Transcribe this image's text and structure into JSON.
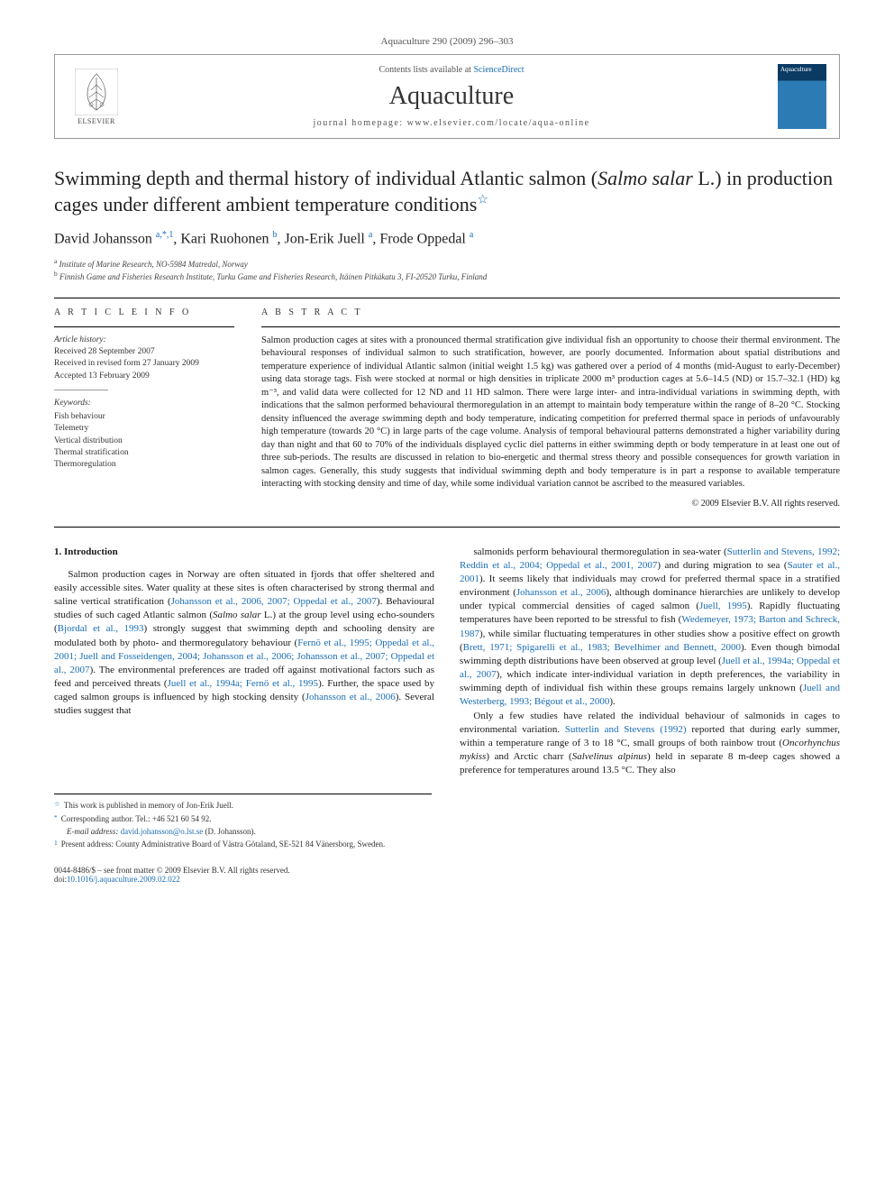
{
  "journal_citation": "Aquaculture 290 (2009) 296–303",
  "header": {
    "contents_prefix": "Contents lists available at ",
    "contents_link": "ScienceDirect",
    "journal_name": "Aquaculture",
    "homepage_label": "journal homepage: ",
    "homepage_url": "www.elsevier.com/locate/aqua-online",
    "publisher": "ELSEVIER",
    "cover_title": "Aquaculture"
  },
  "article": {
    "title_part1": "Swimming depth and thermal history of individual Atlantic salmon (",
    "title_species": "Salmo salar",
    "title_part2": " L.) in production cages under different ambient temperature conditions",
    "star": "☆",
    "authors_html": "David Johansson <sup>a,*,1</sup>, Kari Ruohonen <sup>b</sup>, Jon-Erik Juell <sup>a</sup>, Frode Oppedal <sup>a</sup>",
    "authors": [
      {
        "name": "David Johansson",
        "marks": "a,*,1"
      },
      {
        "name": "Kari Ruohonen",
        "marks": "b"
      },
      {
        "name": "Jon-Erik Juell",
        "marks": "a"
      },
      {
        "name": "Frode Oppedal",
        "marks": "a"
      }
    ],
    "affiliations": [
      {
        "mark": "a",
        "text": "Institute of Marine Research, NO-5984 Matredal, Norway"
      },
      {
        "mark": "b",
        "text": "Finnish Game and Fisheries Research Institute, Turku Game and Fisheries Research, Itäinen Pitkäkatu 3, FI-20520 Turku, Finland"
      }
    ]
  },
  "info": {
    "heading": "A R T I C L E   I N F O",
    "history_label": "Article history:",
    "history": [
      "Received 28 September 2007",
      "Received in revised form 27 January 2009",
      "Accepted 13 February 2009"
    ],
    "keywords_label": "Keywords:",
    "keywords": [
      "Fish behaviour",
      "Telemetry",
      "Vertical distribution",
      "Thermal stratification",
      "Thermoregulation"
    ]
  },
  "abstract": {
    "heading": "A B S T R A C T",
    "text": "Salmon production cages at sites with a pronounced thermal stratification give individual fish an opportunity to choose their thermal environment. The behavioural responses of individual salmon to such stratification, however, are poorly documented. Information about spatial distributions and temperature experience of individual Atlantic salmon (initial weight 1.5 kg) was gathered over a period of 4 months (mid-August to early-December) using data storage tags. Fish were stocked at normal or high densities in triplicate 2000 m³ production cages at 5.6–14.5 (ND) or 15.7–32.1 (HD) kg m⁻³, and valid data were collected for 12 ND and 11 HD salmon. There were large inter- and intra-individual variations in swimming depth, with indications that the salmon performed behavioural thermoregulation in an attempt to maintain body temperature within the range of 8–20 °C. Stocking density influenced the average swimming depth and body temperature, indicating competition for preferred thermal space in periods of unfavourably high temperature (towards 20 °C) in large parts of the cage volume. Analysis of temporal behavioural patterns demonstrated a higher variability during day than night and that 60 to 70% of the individuals displayed cyclic diel patterns in either swimming depth or body temperature in at least one out of three sub-periods. The results are discussed in relation to bio-energetic and thermal stress theory and possible consequences for growth variation in salmon cages. Generally, this study suggests that individual swimming depth and body temperature is in part a response to available temperature interacting with stocking density and time of day, while some individual variation cannot be ascribed to the measured variables.",
    "copyright": "© 2009 Elsevier B.V. All rights reserved."
  },
  "body": {
    "section_heading": "1. Introduction",
    "col1": "Salmon production cages in Norway are often situated in fjords that offer sheltered and easily accessible sites. Water quality at these sites is often characterised by strong thermal and saline vertical stratification (<span class=\"cite\">Johansson et al., 2006, 2007; Oppedal et al., 2007</span>). Behavioural studies of such caged Atlantic salmon (<span class=\"species\">Salmo salar</span> L.) at the group level using echo-sounders (<span class=\"cite\">Bjordal et al., 1993</span>) strongly suggest that swimming depth and schooling density are modulated both by photo- and thermoregulatory behaviour (<span class=\"cite\">Fernö et al., 1995; Oppedal et al., 2001; Juell and Fosseidengen, 2004; Johansson et al., 2006; Johansson et al., 2007; Oppedal et al., 2007</span>). The environmental preferences are traded off against motivational factors such as feed and perceived threats (<span class=\"cite\">Juell et al., 1994a; Fernö et al., 1995</span>). Further, the space used by caged salmon groups is influenced by high stocking density (<span class=\"cite\">Johansson et al., 2006</span>). Several studies suggest that",
    "col2": "salmonids perform behavioural thermoregulation in sea-water (<span class=\"cite\">Sutterlin and Stevens, 1992; Reddin et al., 2004; Oppedal et al., 2001, 2007</span>) and during migration to sea (<span class=\"cite\">Sauter et al., 2001</span>). It seems likely that individuals may crowd for preferred thermal space in a stratified environment (<span class=\"cite\">Johansson et al., 2006</span>), although dominance hierarchies are unlikely to develop under typical commercial densities of caged salmon (<span class=\"cite\">Juell, 1995</span>). Rapidly fluctuating temperatures have been reported to be stressful to fish (<span class=\"cite\">Wedemeyer, 1973; Barton and Schreck, 1987</span>), while similar fluctuating temperatures in other studies show a positive effect on growth (<span class=\"cite\">Brett, 1971; Spigarelli et al., 1983; Bevelhimer and Bennett, 2000</span>). Even though bimodal swimming depth distributions have been observed at group level (<span class=\"cite\">Juell et al., 1994a; Oppedal et al., 2007</span>), which indicate inter-individual variation in depth preferences, the variability in swimming depth of individual fish within these groups remains largely unknown (<span class=\"cite\">Juell and Westerberg, 1993; Bégout et al., 2000</span>).",
    "col2_p2": "Only a few studies have related the individual behaviour of salmonids in cages to environmental variation. <span class=\"cite\">Sutterlin and Stevens (1992)</span> reported that during early summer, within a temperature range of 3 to 18 °C, small groups of both rainbow trout (<span class=\"species\">Oncorhynchus mykiss</span>) and Arctic charr (<span class=\"species\">Salvelinus alpinus</span>) held in separate 8 m-deep cages showed a preference for temperatures around 13.5 °C. They also"
  },
  "footnotes": {
    "star": "This work is published in memory of Jon-Erik Juell.",
    "corr_label": "Corresponding author. Tel.: +46 521 60 54 92.",
    "email_label": "E-mail address:",
    "email": "david.johansson@o.lst.se",
    "email_name": "(D. Johansson).",
    "present_label": "Present address: County Administrative Board of Västra Götaland, SE-521 84 Vänersborg, Sweden."
  },
  "bottom": {
    "line1": "0044-8486/$ – see front matter © 2009 Elsevier B.V. All rights reserved.",
    "doi_label": "doi:",
    "doi": "10.1016/j.aquaculture.2009.02.022"
  },
  "colors": {
    "link": "#1a6db3",
    "text": "#1a1a1a",
    "muted": "#555555",
    "rule": "#000000",
    "cover_top": "#0b3a63",
    "cover_bottom": "#2d7bb5"
  }
}
